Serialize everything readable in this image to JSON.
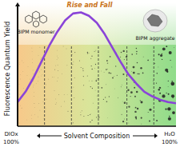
{
  "chart_data": {
    "type": "line",
    "x": [
      0,
      5,
      10,
      15,
      20,
      25,
      30,
      35,
      40,
      45,
      50,
      55,
      60,
      65,
      70,
      75,
      80,
      85,
      90,
      95,
      100
    ],
    "values": [
      21,
      30,
      42,
      56,
      70,
      82,
      92,
      98,
      99,
      96,
      90,
      80,
      68,
      56,
      45,
      37,
      30,
      26,
      23,
      21,
      20
    ],
    "color": "#8a44d8",
    "xlim": [
      0,
      100
    ],
    "ylim": [
      0,
      100
    ],
    "tick_labels": false,
    "grid": false,
    "x_label": "Solvent Composition",
    "y_label": "Fluorescence Quantum Yield",
    "annotations": [
      "BIPM monomer",
      "BIPM aggregate",
      "Rise and Fall",
      "DIOx",
      "100%",
      "H₂O",
      "100%"
    ]
  }
}
